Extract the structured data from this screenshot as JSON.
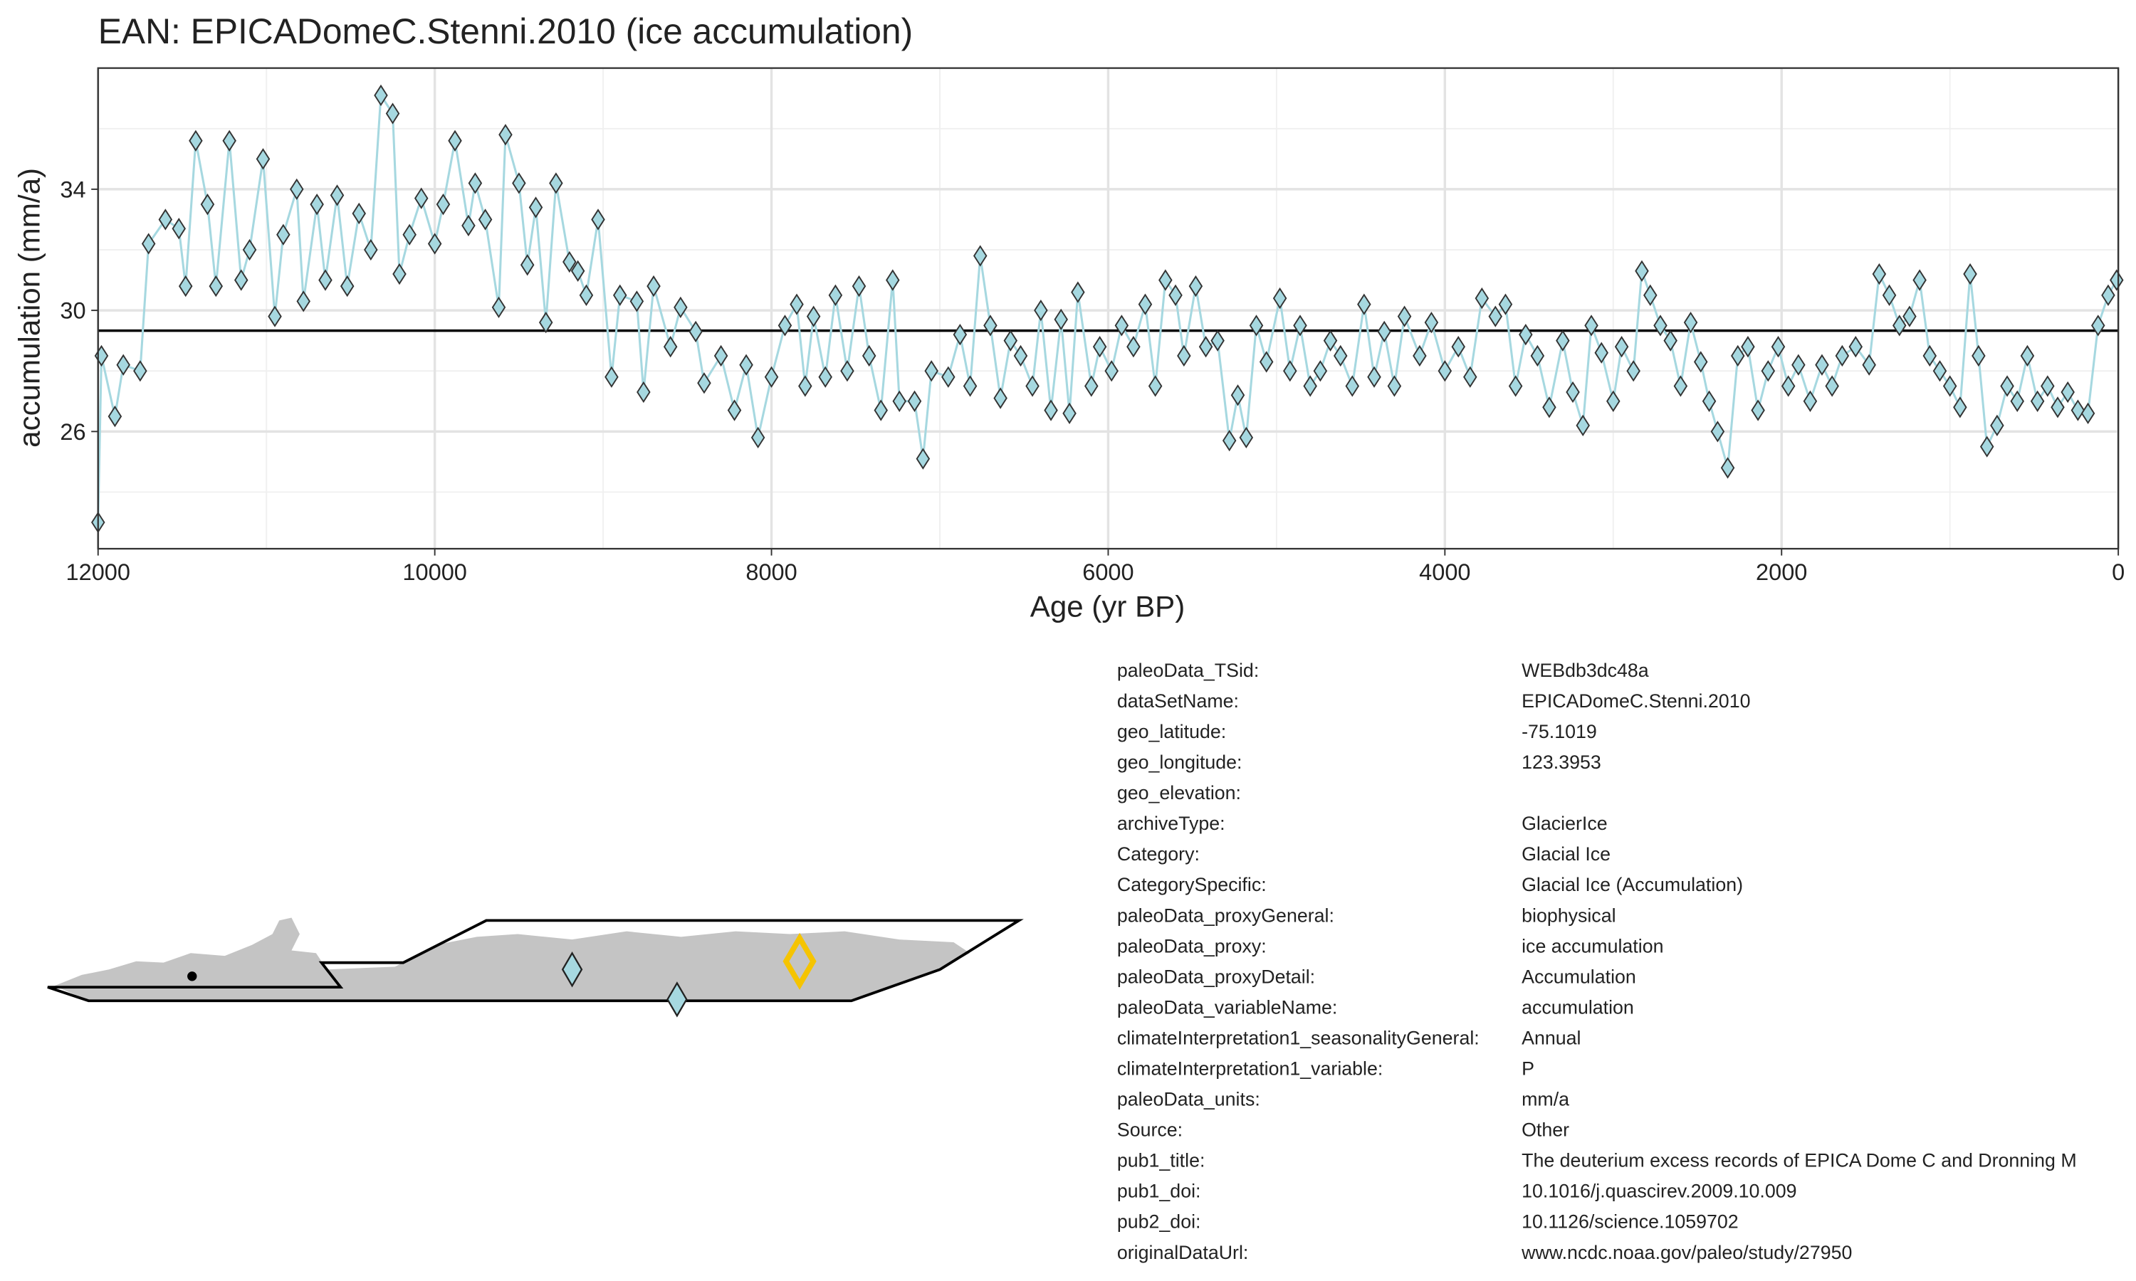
{
  "chart_data": {
    "type": "line",
    "title": "EAN: EPICADomeC.Stenni.2010 (ice accumulation)",
    "x_label": "Age (yr BP)",
    "y_label": "accumulation (mm/a)",
    "xlim": [
      12000,
      0
    ],
    "ylim": [
      22.13,
      38.0
    ],
    "xticks": [
      12000,
      10000,
      8000,
      6000,
      4000,
      2000,
      0
    ],
    "yticks": [
      26,
      30,
      34
    ],
    "x_minor_gridlines": [
      11000,
      9000,
      7000,
      5000,
      3000,
      1000
    ],
    "y_minor_gridlines": [
      24,
      28,
      32,
      36
    ],
    "grid": true,
    "reference_line": 29.33,
    "series": [
      {
        "color": "#a6d8e0",
        "x": [
          12000,
          11980,
          11900,
          11850,
          11750,
          11700,
          11600,
          11520,
          11480,
          11420,
          11350,
          11300,
          11220,
          11150,
          11100,
          11020,
          10950,
          10900,
          10820,
          10780,
          10700,
          10650,
          10580,
          10520,
          10450,
          10380,
          10320,
          10250,
          10210,
          10150,
          10080,
          10000,
          9950,
          9880,
          9800,
          9760,
          9700,
          9620,
          9580,
          9500,
          9450,
          9400,
          9340,
          9280,
          9200,
          9150,
          9100,
          9030,
          8950,
          8900,
          8800,
          8760,
          8700,
          8600,
          8540,
          8450,
          8400,
          8300,
          8220,
          8150,
          8080,
          8000,
          7920,
          7850,
          7800,
          7750,
          7680,
          7620,
          7550,
          7480,
          7420,
          7350,
          7280,
          7240,
          7150,
          7100,
          7050,
          6950,
          6880,
          6820,
          6760,
          6700,
          6640,
          6580,
          6520,
          6450,
          6400,
          6340,
          6280,
          6230,
          6180,
          6100,
          6050,
          5980,
          5920,
          5850,
          5780,
          5720,
          5660,
          5600,
          5550,
          5480,
          5420,
          5350,
          5280,
          5230,
          5180,
          5120,
          5060,
          4980,
          4920,
          4860,
          4800,
          4740,
          4680,
          4620,
          4550,
          4480,
          4420,
          4360,
          4300,
          4240,
          4150,
          4080,
          4000,
          3920,
          3850,
          3780,
          3700,
          3640,
          3580,
          3520,
          3450,
          3380,
          3300,
          3240,
          3180,
          3130,
          3070,
          3000,
          2950,
          2880,
          2830,
          2780,
          2720,
          2660,
          2600,
          2540,
          2480,
          2430,
          2380,
          2320,
          2260,
          2200,
          2140,
          2080,
          2020,
          1960,
          1900,
          1830,
          1760,
          1700,
          1640,
          1560,
          1480,
          1420,
          1360,
          1300,
          1240,
          1180,
          1120,
          1060,
          1000,
          940,
          880,
          830,
          780,
          720,
          660,
          600,
          540,
          480,
          420,
          360,
          300,
          240,
          180,
          120,
          60,
          10
        ],
        "values": [
          23.0,
          28.5,
          26.5,
          28.2,
          28.0,
          32.2,
          33.0,
          32.7,
          30.8,
          35.6,
          33.5,
          30.8,
          35.6,
          31.0,
          32.0,
          35.0,
          29.8,
          32.5,
          34.0,
          30.3,
          33.5,
          31.0,
          33.8,
          30.8,
          33.2,
          32.0,
          37.1,
          36.5,
          31.2,
          32.5,
          33.7,
          32.2,
          33.5,
          35.6,
          32.8,
          34.2,
          33.0,
          30.1,
          35.8,
          34.2,
          31.5,
          33.4,
          29.6,
          34.2,
          31.6,
          31.3,
          30.5,
          33.0,
          27.8,
          30.5,
          30.3,
          27.3,
          30.8,
          28.8,
          30.1,
          29.3,
          27.6,
          28.5,
          26.7,
          28.2,
          25.8,
          27.8,
          29.5,
          30.2,
          27.5,
          29.8,
          27.8,
          30.5,
          28.0,
          30.8,
          28.5,
          26.7,
          31.0,
          27.0,
          27.0,
          25.1,
          28.0,
          27.8,
          29.2,
          27.5,
          31.8,
          29.5,
          27.1,
          29.0,
          28.5,
          27.5,
          30.0,
          26.7,
          29.7,
          26.6,
          30.6,
          27.5,
          28.8,
          28.0,
          29.5,
          28.8,
          30.2,
          27.5,
          31.0,
          30.5,
          28.5,
          30.8,
          28.8,
          29.0,
          25.7,
          27.2,
          25.8,
          29.5,
          28.3,
          30.4,
          28.0,
          29.5,
          27.5,
          28.0,
          29.0,
          28.5,
          27.5,
          30.2,
          27.8,
          29.3,
          27.5,
          29.8,
          28.5,
          29.6,
          28.0,
          28.8,
          27.8,
          30.4,
          29.8,
          30.2,
          27.5,
          29.2,
          28.5,
          26.8,
          29.0,
          27.3,
          26.2,
          29.5,
          28.6,
          27.0,
          28.8,
          28.0,
          31.3,
          30.5,
          29.5,
          29.0,
          27.5,
          29.6,
          28.3,
          27.0,
          26.0,
          24.8,
          28.5,
          28.8,
          26.7,
          28.0,
          28.8,
          27.5,
          28.2,
          27.0,
          28.2,
          27.5,
          28.5,
          28.8,
          28.2,
          31.2,
          30.5,
          29.5,
          29.8,
          31.0,
          28.5,
          28.0,
          27.5,
          26.8,
          31.2,
          28.5,
          25.5,
          26.2,
          27.5,
          27.0,
          28.5,
          27.0,
          27.5,
          26.8,
          27.3,
          26.7,
          26.6,
          29.5,
          30.5,
          31.0
        ]
      }
    ]
  },
  "metadata": {
    "rows": [
      {
        "key": "paleoData_TSid:",
        "value": "WEBdb3dc48a"
      },
      {
        "key": "dataSetName:",
        "value": "EPICADomeC.Stenni.2010"
      },
      {
        "key": "geo_latitude:",
        "value": "-75.1019"
      },
      {
        "key": "geo_longitude:",
        "value": "123.3953"
      },
      {
        "key": "geo_elevation:"
      },
      {
        "key": "archiveType:",
        "value": "GlacierIce"
      },
      {
        "key": "Category:",
        "value": "Glacial Ice"
      },
      {
        "key": "CategorySpecific:",
        "value": "Glacial Ice (Accumulation)"
      },
      {
        "key": "paleoData_proxyGeneral:",
        "value": "biophysical"
      },
      {
        "key": "paleoData_proxy:",
        "value": "ice accumulation"
      },
      {
        "key": "paleoData_proxyDetail:",
        "value": "Accumulation"
      },
      {
        "key": "paleoData_variableName:",
        "value": "accumulation"
      },
      {
        "key": "climateInterpretation1_seasonalityGeneral:",
        "value": "Annual"
      },
      {
        "key": "climateInterpretation1_variable:",
        "value": "P"
      },
      {
        "key": "paleoData_units:",
        "value": "mm/a"
      },
      {
        "key": "Source:",
        "value": "Other"
      },
      {
        "key": "pub1_title:",
        "value": "The deuterium excess records of EPICA Dome C and Dronning M"
      },
      {
        "key": "pub1_doi:",
        "value": "10.1016/j.quascirev.2009.10.009"
      },
      {
        "key": "pub2_doi:",
        "value": "10.1126/science.1059702"
      },
      {
        "key": "originalDataUrl:",
        "value": "www.ncdc.noaa.gov/paleo/study/27950"
      }
    ]
  }
}
